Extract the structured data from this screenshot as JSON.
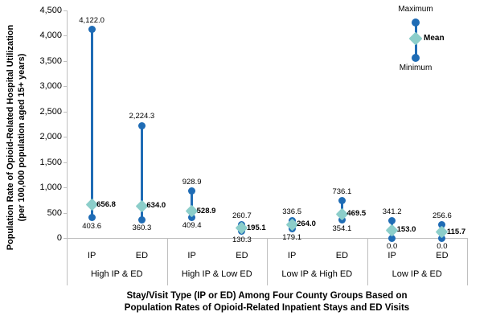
{
  "y_axis": {
    "title_line1": "Population Rate of Opioid-Related Hospital Utilization",
    "title_line2": "(per 100,000 population aged 15+ years)",
    "tick_labels": [
      "0",
      "500",
      "1,000",
      "1,500",
      "2,000",
      "2,500",
      "3,000",
      "3,500",
      "4,000",
      "4,500"
    ],
    "tick_step": 500
  },
  "x_axis": {
    "title_line1": "Stay/Visit Type (IP or ED) Among Four County Groups Based on",
    "title_line2": "Population Rates of Opioid-Related Inpatient Stays and ED Visits"
  },
  "legend": {
    "maximum_label": "Maximum",
    "mean_label": "Mean",
    "minimum_label": "Minimum"
  },
  "colors": {
    "marker_blue": "#1f6cb5",
    "mean_teal": "#8cceca",
    "axis_gray": "#bfbfbf",
    "text_black": "#000000"
  },
  "chart_data": {
    "type": "dumbbell-range",
    "ylim": [
      0,
      4500
    ],
    "ylabel": "Population Rate of Opioid-Related Hospital Utilization (per 100,000 population aged 15+ years)",
    "xlabel": "Stay/Visit Type (IP or ED) Among Four County Groups Based on Population Rates of Opioid-Related Inpatient Stays and ED Visits",
    "legend_position": "top-right",
    "grid": false,
    "groups": [
      {
        "label": "High IP & ED",
        "series": [
          {
            "category": "IP",
            "max": 4122.0,
            "mean": 656.8,
            "min": 403.6,
            "max_label": "4,122.0",
            "mean_label": "656.8",
            "min_label": "403.6"
          },
          {
            "category": "ED",
            "max": 2224.3,
            "mean": 634.0,
            "min": 360.3,
            "max_label": "2,224.3",
            "mean_label": "634.0",
            "min_label": "360.3"
          }
        ]
      },
      {
        "label": "High IP & Low ED",
        "series": [
          {
            "category": "IP",
            "max": 928.9,
            "mean": 528.9,
            "min": 409.4,
            "max_label": "928.9",
            "mean_label": "528.9",
            "min_label": "409.4"
          },
          {
            "category": "ED",
            "max": 260.7,
            "mean": 195.1,
            "min": 130.3,
            "max_label": "260.7",
            "mean_label": "195.1",
            "min_label": "130.3"
          }
        ]
      },
      {
        "label": "Low IP & High ED",
        "series": [
          {
            "category": "IP",
            "max": 336.5,
            "mean": 264.0,
            "min": 179.1,
            "max_label": "336.5",
            "mean_label": "264.0",
            "min_label": "179.1"
          },
          {
            "category": "ED",
            "max": 736.1,
            "mean": 469.5,
            "min": 354.1,
            "max_label": "736.1",
            "mean_label": "469.5",
            "min_label": "354.1"
          }
        ]
      },
      {
        "label": "Low IP & ED",
        "series": [
          {
            "category": "IP",
            "max": 341.2,
            "mean": 153.0,
            "min": 0.0,
            "max_label": "341.2",
            "mean_label": "153.0",
            "min_label": "0.0"
          },
          {
            "category": "ED",
            "max": 256.6,
            "mean": 115.7,
            "min": 0.0,
            "max_label": "256.6",
            "mean_label": "115.7",
            "min_label": "0.0"
          }
        ]
      }
    ]
  }
}
